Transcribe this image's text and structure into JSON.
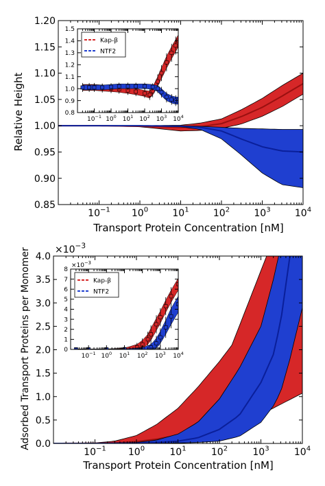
{
  "chart_data": [
    {
      "type": "area",
      "xlabel": "Transport Protein Concentration [nM]",
      "ylabel": "Relative Height",
      "xscale": "log",
      "xlim": [
        0.01,
        10000
      ],
      "ylim": [
        0.85,
        1.2
      ],
      "x_tick_labels": [
        "10^-1",
        "10^0",
        "10^1",
        "10^2",
        "10^3",
        "10^4"
      ],
      "y_tick_labels": [
        "0.85",
        "0.90",
        "0.95",
        "1.00",
        "1.05",
        "1.10",
        "1.15",
        "1.20"
      ],
      "grid": false,
      "series": [
        {
          "name": "Kap-β",
          "color": "#d62728",
          "x": [
            0.01,
            0.1,
            1,
            10,
            30,
            100,
            300,
            1000,
            3000,
            10000
          ],
          "mean": [
            1.0,
            1.0,
            0.999,
            0.997,
            0.998,
            1.004,
            1.017,
            1.035,
            1.056,
            1.08
          ],
          "upper": [
            1.0,
            1.0,
            1.0,
            1.001,
            1.005,
            1.013,
            1.03,
            1.052,
            1.076,
            1.1
          ],
          "lower": [
            1.0,
            1.0,
            0.998,
            0.99,
            0.991,
            0.995,
            1.003,
            1.018,
            1.036,
            1.06
          ]
        },
        {
          "name": "NTF2",
          "color": "#1f3fd0",
          "x": [
            0.01,
            0.1,
            1,
            10,
            30,
            100,
            300,
            1000,
            3000,
            10000
          ],
          "mean": [
            1.0,
            1.0,
            1.0,
            0.999,
            0.997,
            0.99,
            0.975,
            0.96,
            0.952,
            0.95
          ],
          "upper": [
            1.0,
            1.0,
            1.0,
            1.0,
            0.999,
            0.997,
            0.995,
            0.994,
            0.993,
            0.993
          ],
          "lower": [
            1.0,
            1.0,
            1.0,
            0.998,
            0.993,
            0.975,
            0.945,
            0.91,
            0.888,
            0.882
          ]
        }
      ],
      "inset": {
        "xlim": [
          0.01,
          10000
        ],
        "ylim": [
          0.8,
          1.5
        ],
        "x_tick_labels": [
          "10^-1",
          "10^0",
          "10^1",
          "10^2",
          "10^3",
          "10^4"
        ],
        "y_tick_labels": [
          "0.8",
          "0.9",
          "1.0",
          "1.1",
          "1.2",
          "1.3",
          "1.4",
          "1.5"
        ],
        "legend": [
          "Kap-β",
          "NTF2"
        ],
        "legend_position": "top-left",
        "series": [
          {
            "name": "Kap-β",
            "color": "#d62728",
            "x": [
              0.02,
              0.05,
              0.1,
              0.3,
              1,
              3,
              10,
              30,
              100,
              200,
              300,
              600,
              1000,
              2000,
              4000,
              7000,
              10000
            ],
            "mean": [
              1.01,
              1.01,
              1.01,
              1.005,
              1.0,
              0.995,
              0.985,
              0.975,
              0.96,
              0.95,
              0.98,
              1.06,
              1.13,
              1.22,
              1.3,
              1.36,
              1.4
            ],
            "spread": [
              0.025,
              0.025,
              0.025,
              0.025,
              0.025,
              0.025,
              0.025,
              0.025,
              0.025,
              0.03,
              0.035,
              0.04,
              0.045,
              0.05,
              0.05,
              0.05,
              0.05
            ]
          },
          {
            "name": "NTF2",
            "color": "#1f3fd0",
            "x": [
              0.02,
              0.05,
              0.1,
              0.3,
              1,
              3,
              10,
              30,
              100,
              300,
              600,
              1000,
              2000,
              4000,
              7000,
              10000
            ],
            "mean": [
              1.01,
              1.01,
              1.01,
              1.01,
              1.015,
              1.02,
              1.02,
              1.02,
              1.02,
              1.015,
              1.0,
              0.97,
              0.93,
              0.91,
              0.9,
              0.9
            ],
            "spread": [
              0.02,
              0.02,
              0.02,
              0.02,
              0.02,
              0.02,
              0.02,
              0.02,
              0.02,
              0.02,
              0.025,
              0.03,
              0.03,
              0.03,
              0.03,
              0.03
            ]
          }
        ]
      }
    },
    {
      "type": "area",
      "xlabel": "Transport Protein Concentration [nM]",
      "ylabel": "Adsorbed Transport Proteins per Monomer",
      "y_scale_label": "×10^-3",
      "xscale": "log",
      "xlim": [
        0.01,
        10000
      ],
      "ylim": [
        0,
        4.0
      ],
      "x_tick_labels": [
        "10^-1",
        "10^0",
        "10^1",
        "10^2",
        "10^3",
        "10^4"
      ],
      "y_tick_labels": [
        "0.0",
        "0.5",
        "1.0",
        "1.5",
        "2.0",
        "2.5",
        "3.0",
        "3.5",
        "4.0"
      ],
      "grid": false,
      "series": [
        {
          "name": "Kap-β",
          "color": "#d62728",
          "x": [
            0.01,
            0.1,
            0.3,
            1,
            3,
            10,
            30,
            100,
            200,
            300,
            1000,
            3000,
            10000
          ],
          "mean": [
            0.0,
            0.003,
            0.012,
            0.04,
            0.09,
            0.18,
            0.3,
            0.5,
            0.66,
            0.78,
            1.3,
            2.0,
            3.05
          ],
          "upper": [
            0.0,
            0.01,
            0.05,
            0.17,
            0.4,
            0.75,
            1.2,
            1.75,
            2.1,
            2.5,
            null,
            null,
            null
          ],
          "lower": [
            0.0,
            0.0,
            0.003,
            0.01,
            0.02,
            0.05,
            0.1,
            0.2,
            0.3,
            0.38,
            null,
            null,
            null
          ]
        },
        {
          "name": "NTF2",
          "color": "#1f3fd0",
          "x": [
            0.01,
            0.1,
            1,
            3,
            10,
            30,
            100,
            300,
            1000,
            2000,
            3000,
            5000,
            10000
          ],
          "mean": [
            0.0,
            0.0,
            0.006,
            0.02,
            0.05,
            0.12,
            0.3,
            0.6,
            1.3,
            1.9,
            2.6,
            4.0,
            null
          ],
          "upper": [
            0.0,
            0.002,
            0.02,
            0.07,
            0.2,
            0.45,
            0.95,
            1.6,
            2.5,
            3.5,
            4.2,
            null,
            null
          ],
          "lower": [
            0.0,
            0.0,
            0.0,
            0.003,
            0.01,
            0.02,
            0.05,
            0.15,
            0.45,
            0.8,
            1.1,
            1.8,
            2.9
          ]
        }
      ],
      "inset": {
        "xlim": [
          0.01,
          10000
        ],
        "ylim": [
          0,
          8
        ],
        "y_scale_label": "×10^-3",
        "x_tick_labels": [
          "10^-1",
          "10^0",
          "10^1",
          "10^2",
          "10^3",
          "10^4"
        ],
        "y_tick_labels": [
          "0",
          "1",
          "2",
          "3",
          "4",
          "5",
          "6",
          "7",
          "8"
        ],
        "legend": [
          "Kap-β",
          "NTF2"
        ],
        "legend_position": "top-left",
        "series": [
          {
            "name": "Kap-β",
            "color": "#d62728",
            "x": [
              0.02,
              0.1,
              1,
              10,
              50,
              100,
              200,
              300,
              600,
              1000,
              2000,
              4000,
              10000
            ],
            "mean": [
              0.0,
              0.0,
              0.0,
              0.03,
              0.2,
              0.5,
              1.0,
              1.5,
              2.5,
              3.2,
              4.3,
              5.3,
              6.5
            ],
            "spread": [
              0.05,
              0.05,
              0.05,
              0.1,
              0.3,
              0.4,
              0.5,
              0.6,
              0.6,
              0.6,
              0.6,
              0.6,
              0.6
            ]
          },
          {
            "name": "NTF2",
            "color": "#1f3fd0",
            "x": [
              0.02,
              0.1,
              1,
              10,
              100,
              300,
              600,
              1000,
              2000,
              4000,
              10000
            ],
            "mean": [
              0.0,
              0.0,
              0.0,
              0.0,
              0.05,
              0.2,
              0.6,
              1.2,
              2.2,
              3.3,
              4.5
            ],
            "spread": [
              0.05,
              0.05,
              0.05,
              0.05,
              0.1,
              0.3,
              0.5,
              0.6,
              0.7,
              0.8,
              0.8
            ]
          }
        ]
      }
    }
  ]
}
